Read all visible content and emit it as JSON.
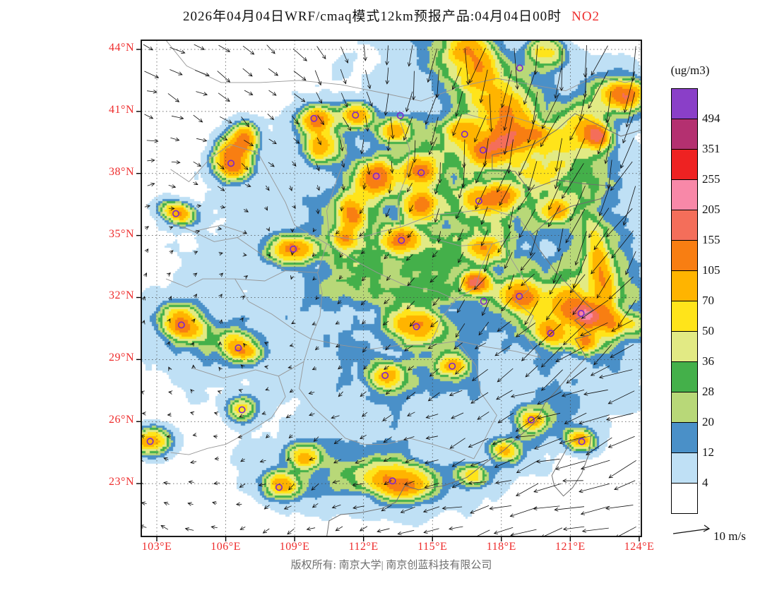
{
  "title": {
    "main": "2026年04月04日WRF/cmaq模式12km预报产品:04月04日00时",
    "species": "NO2"
  },
  "footer": {
    "copyright": "版权所有: 南京大学| 南京创蓝科技有限公司"
  },
  "colors": {
    "axis_label": "#ee2c2c",
    "species": "#ee2c2c",
    "copyright": "#6e6e6e",
    "marker": "#7d26cd",
    "frame": "#000000"
  },
  "axes": {
    "x_labels": [
      "103°E",
      "106°E",
      "109°E",
      "112°E",
      "115°E",
      "118°E",
      "121°E",
      "124°E"
    ],
    "y_labels": [
      "44°N",
      "41°N",
      "38°N",
      "35°N",
      "32°N",
      "29°N",
      "26°N",
      "23°N"
    ]
  },
  "legend": {
    "units": "(ug/m3)",
    "labels": [
      "494",
      "351",
      "255",
      "205",
      "155",
      "105",
      "70",
      "50",
      "36",
      "28",
      "20",
      "12",
      "4"
    ]
  },
  "wind_legend": {
    "label": "10 m/s",
    "reference_speed_ms": 10
  },
  "chart_data": {
    "type": "heatmap",
    "variable": "NO2",
    "units": "ug/m3",
    "model": "WRF/cmaq 12km forecast",
    "valid_time": "04月04日00时",
    "lon_range": [
      102.32,
      124.09
    ],
    "lat_range": [
      20.44,
      44.44
    ],
    "lon_ticks": [
      103,
      106,
      109,
      112,
      115,
      118,
      121,
      124
    ],
    "lat_ticks": [
      44,
      41,
      38,
      35,
      32,
      29,
      26,
      23
    ],
    "levels": [
      4,
      12,
      20,
      28,
      36,
      50,
      70,
      105,
      155,
      205,
      255,
      351,
      494
    ],
    "palette": [
      "#ffffff",
      "#bfe0f5",
      "#4a90c8",
      "#b8d878",
      "#44b04a",
      "#e2ea84",
      "#ffe41a",
      "#ffb400",
      "#f87e12",
      "#f46e5a",
      "#f888a8",
      "#ee2222",
      "#b43070",
      "#8a3fc8"
    ],
    "city_markers": [
      [
        111.65,
        40.82
      ],
      [
        118.8,
        43.1
      ],
      [
        109.84,
        40.66
      ],
      [
        113.6,
        40.8
      ],
      [
        116.4,
        39.9
      ],
      [
        117.2,
        39.13
      ],
      [
        114.51,
        38.04
      ],
      [
        112.55,
        37.87
      ],
      [
        106.23,
        38.49
      ],
      [
        103.83,
        36.06
      ],
      [
        117.02,
        36.67
      ],
      [
        113.65,
        34.76
      ],
      [
        108.94,
        34.34
      ],
      [
        118.78,
        32.06
      ],
      [
        117.23,
        31.82
      ],
      [
        121.47,
        31.23
      ],
      [
        120.15,
        30.27
      ],
      [
        114.3,
        30.59
      ],
      [
        104.07,
        30.67
      ],
      [
        106.55,
        29.56
      ],
      [
        112.94,
        28.23
      ],
      [
        115.86,
        28.68
      ],
      [
        106.71,
        26.57
      ],
      [
        119.3,
        26.08
      ],
      [
        102.71,
        25.04
      ],
      [
        121.5,
        25.03
      ],
      [
        113.26,
        23.13
      ],
      [
        108.32,
        22.82
      ]
    ],
    "wind_grid": {
      "lons": [
        102.3,
        105.4,
        108.5,
        111.6,
        114.8,
        117.9,
        121.0,
        124.1
      ],
      "lats": [
        44.4,
        41,
        38,
        35,
        32,
        29,
        26,
        20.4
      ],
      "u": [
        [
          4,
          4,
          3,
          2,
          0,
          -2,
          -2,
          -3
        ],
        [
          3,
          3,
          2,
          1,
          -1,
          -2,
          -3,
          -3
        ],
        [
          2,
          2,
          1,
          0,
          -1,
          -2,
          -3,
          -4
        ],
        [
          1,
          1,
          0,
          -1,
          -1,
          -2,
          -4,
          -5
        ],
        [
          0,
          1,
          0,
          -1,
          -2,
          -3,
          -5,
          -6
        ],
        [
          0,
          0,
          -1,
          -1,
          -2,
          -4,
          -6,
          -7
        ],
        [
          -1,
          -1,
          -1,
          -2,
          -3,
          -5,
          -7,
          -8
        ],
        [
          -2,
          -2,
          -2,
          -3,
          -4,
          -6,
          -7,
          -8
        ]
      ],
      "v": [
        [
          -1,
          -2,
          -3,
          -5,
          -8,
          -10,
          -11,
          -10
        ],
        [
          -1,
          -2,
          -2,
          -4,
          -7,
          -9,
          -10,
          -10
        ],
        [
          0,
          -1,
          -1,
          -2,
          -4,
          -7,
          -9,
          -9
        ],
        [
          1,
          0,
          -1,
          -1,
          -2,
          -5,
          -8,
          -8
        ],
        [
          1,
          1,
          0,
          -1,
          -2,
          -4,
          -6,
          -6
        ],
        [
          0,
          1,
          0,
          -1,
          -2,
          -3,
          -4,
          -4
        ],
        [
          0,
          0,
          -1,
          -1,
          -1,
          -2,
          -2,
          -3
        ],
        [
          1,
          0,
          -1,
          -1,
          -1,
          -1,
          -2,
          -2
        ]
      ]
    },
    "field_model": {
      "broad": [
        [
          114.0,
          33.0,
          7.5,
          7.0,
          0,
          8
        ],
        [
          119.0,
          36.0,
          5.0,
          6.0,
          0,
          4
        ],
        [
          115.8,
          37.0,
          2.6,
          2.3,
          -20,
          22
        ],
        [
          117.9,
          41.4,
          1.1,
          3.2,
          36,
          30
        ],
        [
          120.6,
          31.8,
          1.9,
          1.4,
          27,
          24
        ],
        [
          111.6,
          35.3,
          0.9,
          2.2,
          -24,
          16
        ],
        [
          105.0,
          30.0,
          1.4,
          1.1,
          -30,
          14
        ],
        [
          113.8,
          29.3,
          2.2,
          1.6,
          0,
          10
        ],
        [
          111.8,
          23.6,
          2.6,
          1.1,
          0,
          16
        ],
        [
          122.3,
          34.0,
          0.9,
          3.0,
          8,
          12
        ],
        [
          119.8,
          38.7,
          1.6,
          1.0,
          -20,
          14
        ],
        [
          122.9,
          41.7,
          1.0,
          0.8,
          -30,
          20
        ],
        [
          119.6,
          25.6,
          0.7,
          1.6,
          -38,
          12
        ],
        [
          113.5,
          32.8,
          1.6,
          1.3,
          0,
          10
        ]
      ],
      "plumes": [
        [
          106.3,
          38.7,
          0.45,
          0.55,
          0,
          170
        ],
        [
          106.8,
          39.7,
          0.35,
          0.4,
          0,
          120
        ],
        [
          103.9,
          36.1,
          0.5,
          0.3,
          -20,
          90
        ],
        [
          110.0,
          40.6,
          0.5,
          0.4,
          0,
          110
        ],
        [
          111.7,
          40.8,
          0.4,
          0.35,
          0,
          90
        ],
        [
          110.2,
          39.3,
          0.5,
          0.45,
          0,
          80
        ],
        [
          113.3,
          40.1,
          0.4,
          0.35,
          0,
          95
        ],
        [
          112.5,
          37.8,
          0.45,
          0.5,
          0,
          120
        ],
        [
          111.5,
          36.1,
          0.35,
          0.5,
          0,
          90
        ],
        [
          108.9,
          34.3,
          0.65,
          0.4,
          0,
          100
        ],
        [
          111.2,
          34.8,
          0.4,
          0.3,
          0,
          70
        ],
        [
          113.7,
          34.8,
          0.55,
          0.4,
          0,
          105
        ],
        [
          114.5,
          36.4,
          0.45,
          0.4,
          0,
          95
        ],
        [
          114.5,
          38.1,
          0.5,
          0.4,
          0,
          100
        ],
        [
          116.3,
          40.0,
          0.5,
          0.4,
          0,
          90
        ],
        [
          117.3,
          39.1,
          0.55,
          0.4,
          0,
          105
        ],
        [
          118.2,
          39.7,
          0.45,
          0.35,
          0,
          110
        ],
        [
          119.6,
          39.9,
          0.4,
          0.3,
          0,
          80
        ],
        [
          117.1,
          36.7,
          0.5,
          0.4,
          0,
          90
        ],
        [
          118.1,
          36.9,
          0.4,
          0.35,
          0,
          80
        ],
        [
          120.4,
          36.2,
          0.4,
          0.35,
          0,
          70
        ],
        [
          117.3,
          34.3,
          0.5,
          0.4,
          0,
          85
        ],
        [
          116.9,
          32.7,
          0.35,
          0.3,
          0,
          180
        ],
        [
          118.85,
          32.1,
          0.5,
          0.4,
          -20,
          115
        ],
        [
          121.5,
          31.25,
          0.8,
          0.45,
          -25,
          150
        ],
        [
          120.2,
          30.3,
          0.5,
          0.35,
          -30,
          85
        ],
        [
          121.6,
          29.9,
          0.4,
          0.35,
          0,
          90
        ],
        [
          114.3,
          30.6,
          0.6,
          0.45,
          0,
          95
        ],
        [
          113.0,
          28.2,
          0.45,
          0.4,
          0,
          85
        ],
        [
          115.9,
          28.7,
          0.4,
          0.35,
          0,
          75
        ],
        [
          106.6,
          29.6,
          0.55,
          0.35,
          -25,
          95
        ],
        [
          104.1,
          30.7,
          0.6,
          0.45,
          -30,
          105
        ],
        [
          106.7,
          26.6,
          0.4,
          0.35,
          0,
          65
        ],
        [
          102.8,
          25.0,
          0.5,
          0.4,
          0,
          85
        ],
        [
          108.4,
          22.9,
          0.5,
          0.4,
          0,
          75
        ],
        [
          109.4,
          24.3,
          0.4,
          0.35,
          0,
          70
        ],
        [
          113.5,
          23.1,
          0.9,
          0.5,
          -10,
          115
        ],
        [
          116.7,
          23.4,
          0.4,
          0.3,
          -20,
          65
        ],
        [
          118.1,
          24.6,
          0.4,
          0.3,
          -25,
          70
        ],
        [
          119.3,
          26.1,
          0.4,
          0.3,
          -25,
          75
        ],
        [
          121.45,
          25.1,
          0.4,
          0.3,
          -20,
          95
        ],
        [
          122.1,
          39.8,
          0.4,
          0.35,
          -20,
          150
        ],
        [
          123.4,
          41.8,
          0.5,
          0.4,
          0,
          120
        ],
        [
          121.3,
          40.2,
          0.6,
          1.0,
          -30,
          45
        ],
        [
          117.1,
          42.9,
          0.5,
          0.8,
          20,
          60
        ],
        [
          118.3,
          40.9,
          0.5,
          0.9,
          25,
          80
        ],
        [
          116.5,
          44.0,
          0.6,
          0.6,
          0,
          55
        ],
        [
          119.9,
          43.8,
          0.5,
          0.5,
          0,
          60
        ],
        [
          122.4,
          32.8,
          0.3,
          1.8,
          8,
          55
        ],
        [
          122.9,
          30.9,
          1.1,
          0.35,
          -15,
          50
        ]
      ],
      "noise": {
        "scale1": 0.9,
        "scale2": 2.3,
        "min": 0.35,
        "range": 1.5
      }
    }
  }
}
